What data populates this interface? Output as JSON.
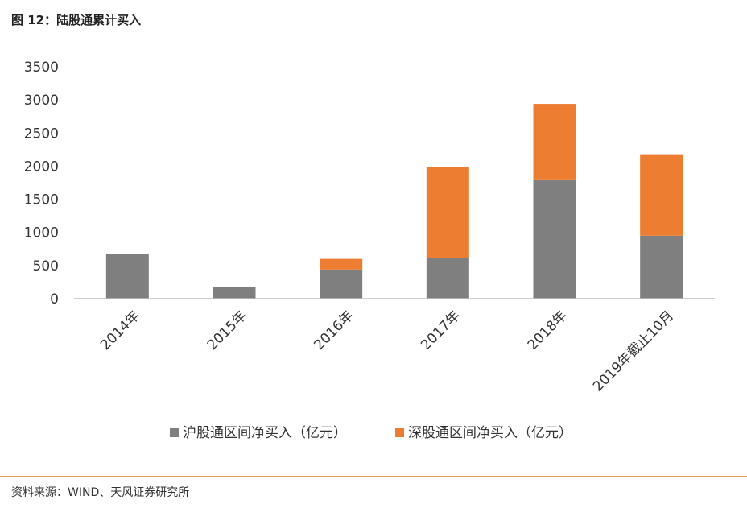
{
  "figure": {
    "title": "图 12：陆股通累计买入",
    "source": "资料来源：WIND、天风证券研究所"
  },
  "chart_data": {
    "type": "bar",
    "stacked": true,
    "categories": [
      "2014年",
      "2015年",
      "2016年",
      "2017年",
      "2018年",
      "2019年截止10月"
    ],
    "series": [
      {
        "name": "沪股通区间净买入（亿元）",
        "color": "#7f7f7f",
        "values": [
          680,
          180,
          440,
          620,
          1800,
          950
        ]
      },
      {
        "name": "深股通区间净买入（亿元）",
        "color": "#ed7d31",
        "values": [
          0,
          0,
          160,
          1370,
          1140,
          1230
        ]
      }
    ],
    "yticks": [
      "0",
      "500",
      "1000",
      "1500",
      "2000",
      "2500",
      "3000",
      "3500"
    ],
    "ylim": [
      0,
      3500
    ],
    "legend_position": "bottom",
    "grid": false
  }
}
